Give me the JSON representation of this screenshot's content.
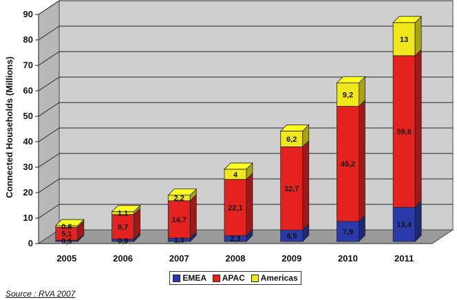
{
  "chart_data": {
    "type": "bar",
    "stacked": true,
    "categories": [
      "2005",
      "2006",
      "2007",
      "2008",
      "2009",
      "2010",
      "2011"
    ],
    "series": [
      {
        "name": "EMEA",
        "values": [
          0.5,
          0.9,
          1.3,
          2.3,
          4.5,
          7.9,
          13.4
        ],
        "labels": [
          "0,5",
          "0,9",
          "1,3",
          "2,3",
          "4,5",
          "7,9",
          "13,4"
        ],
        "color": "#2b3aa8"
      },
      {
        "name": "APAC",
        "values": [
          5.1,
          9.7,
          14.7,
          22.1,
          32.7,
          45.2,
          59.6
        ],
        "labels": [
          "5,1",
          "9,7",
          "14,7",
          "22,1",
          "32,7",
          "45,2",
          "59,6"
        ],
        "color": "#e42321"
      },
      {
        "name": "Americas",
        "values": [
          0.6,
          1.1,
          2.2,
          4,
          6.2,
          9.2,
          13
        ],
        "labels": [
          "0,6",
          "1,1",
          "2,2",
          "4",
          "6,2",
          "9,2",
          "13"
        ],
        "color": "#f0e81c"
      }
    ],
    "ylabel": "Connected Households (Millions)",
    "xlabel": "",
    "ylim": [
      0,
      90
    ],
    "yticks": [
      "0",
      "10",
      "20",
      "30",
      "40",
      "50",
      "60",
      "70",
      "80",
      "90"
    ],
    "grid": true,
    "legend_position": "bottom"
  },
  "legend": {
    "emea": "EMEA",
    "apac": "APAC",
    "americas": "Americas"
  },
  "colors": {
    "emea": "#2b3aa8",
    "apac": "#e42321",
    "americas": "#f0e81c",
    "wall": "#cfcfcf",
    "floor": "#9a9a9a"
  },
  "source": "Source : RVA 2007"
}
